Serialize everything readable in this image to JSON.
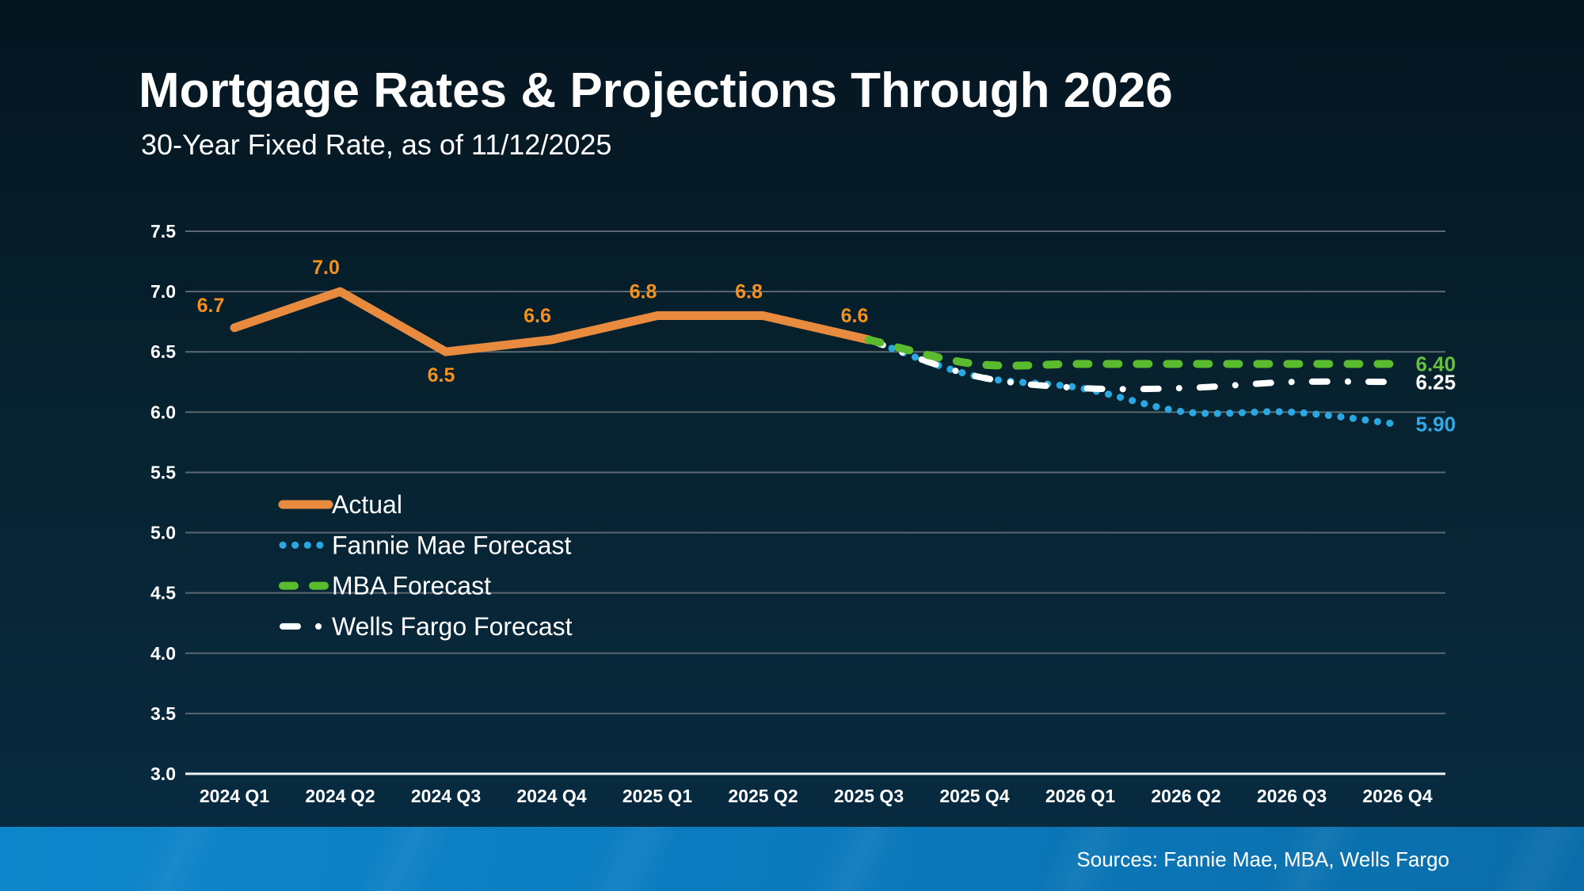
{
  "header": {
    "title": "Mortgage Rates & Projections Through 2026",
    "subtitle": "30-Year Fixed Rate, as of 11/12/2025"
  },
  "footer": {
    "sources": "Sources: Fannie Mae, MBA, Wells Fargo"
  },
  "colors": {
    "background_top": "#051520",
    "background_mid": "#07222f",
    "background_bottom": "#082c43",
    "footer_bar_left": "#0e86cb",
    "footer_bar_right": "#0a6da9",
    "gridline": "#5b6871",
    "axis_line": "#eef3f6",
    "text": "#ffffff"
  },
  "chart_data": {
    "type": "line",
    "title": "Mortgage Rates & Projections Through 2026",
    "subtitle": "30-Year Fixed Rate, as of 11/12/2025",
    "categories": [
      "2024 Q1",
      "2024 Q2",
      "2024 Q3",
      "2024 Q4",
      "2025 Q1",
      "2025 Q2",
      "2025 Q3",
      "2025 Q4",
      "2026 Q1",
      "2026 Q2",
      "2026 Q3",
      "2026 Q4"
    ],
    "xlabel": "",
    "ylabel": "",
    "ylim": [
      3.0,
      7.5
    ],
    "ytick_step": 0.5,
    "ytick_labels": [
      "7.5",
      "7.0",
      "6.5",
      "6.0",
      "5.5",
      "5.0",
      "4.5",
      "4.0",
      "3.5",
      "3.0"
    ],
    "grid": true,
    "legend_position": "middle-left",
    "series": [
      {
        "name": "Actual",
        "style": "solid",
        "smooth": false,
        "color": "#e88b3e",
        "label_color": "#f4911e",
        "start_index": 0,
        "values": [
          6.7,
          7.0,
          6.5,
          6.6,
          6.8,
          6.8,
          6.6
        ],
        "point_labels": [
          {
            "text": "6.7",
            "pos": "left"
          },
          {
            "text": "7.0",
            "pos": "top"
          },
          {
            "text": "6.5",
            "pos": "bottom"
          },
          {
            "text": "6.6",
            "pos": "top"
          },
          {
            "text": "6.8",
            "pos": "top"
          },
          {
            "text": "6.8",
            "pos": "top"
          },
          {
            "text": "6.6",
            "pos": "top"
          }
        ],
        "end_label": ""
      },
      {
        "name": "Fannie Mae Forecast",
        "style": "dotted",
        "smooth": true,
        "color": "#2aa7e1",
        "label_color": "#2fa9e8",
        "start_index": 6,
        "values": [
          6.6,
          6.3,
          6.2,
          6.0,
          6.0,
          5.9
        ],
        "point_labels": [],
        "end_label": "5.90"
      },
      {
        "name": "MBA Forecast",
        "style": "dashed",
        "smooth": true,
        "color": "#59bb2d",
        "label_color": "#66be3e",
        "start_index": 6,
        "values": [
          6.6,
          6.4,
          6.4,
          6.4,
          6.4,
          6.4
        ],
        "point_labels": [],
        "end_label": "6.40"
      },
      {
        "name": "Wells Fargo Forecast",
        "style": "dashdot",
        "smooth": true,
        "color": "#ffffff",
        "label_color": "#ffffff",
        "start_index": 6,
        "values": [
          6.6,
          6.3,
          6.2,
          6.2,
          6.25,
          6.25
        ],
        "point_labels": [],
        "end_label": "6.25"
      }
    ]
  }
}
